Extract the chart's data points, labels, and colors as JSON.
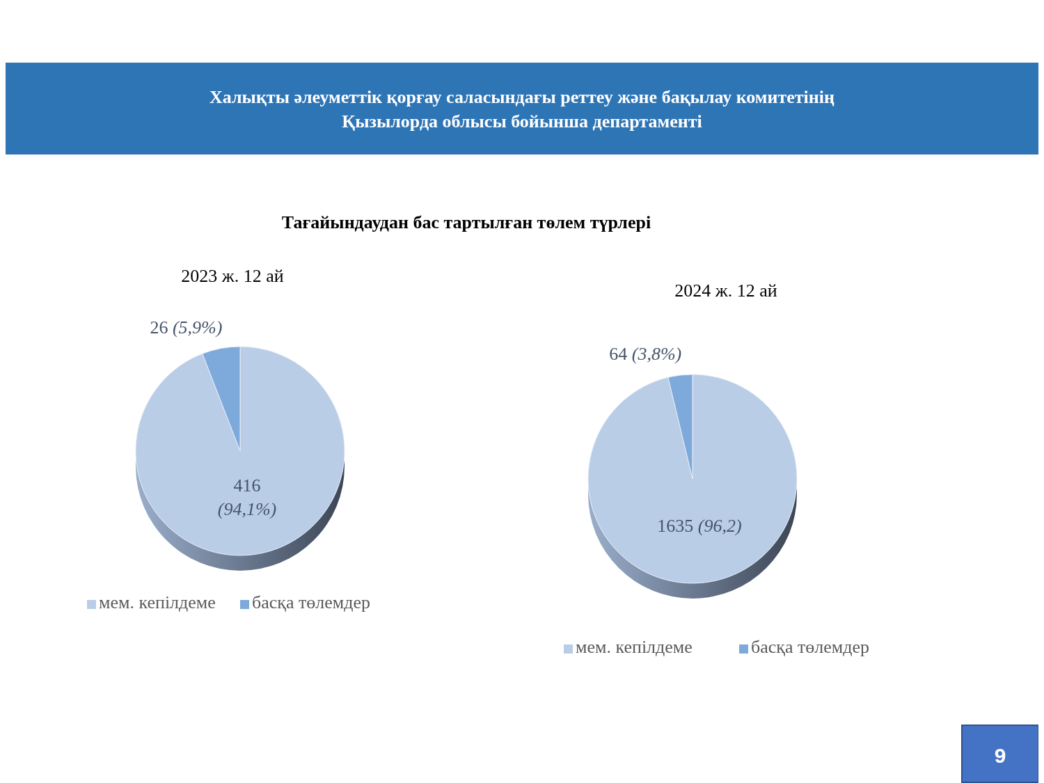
{
  "chart_data": [
    {
      "type": "other",
      "title": "Халықты әлеуметтік қорғау саласындағы реттеу және бақылау комитетінің\nҚызылорда облысы бойынша департаменті",
      "subtitle": "Тағайындаудан бас тартылған төлем түрлері",
      "annotations": [
        "9"
      ]
    },
    {
      "type": "pie",
      "title": "2023 ж. 12 ай",
      "categories": [
        "мем. кепілдеме",
        "басқа төлемдер"
      ],
      "values": [
        416,
        26
      ],
      "colors": [
        "#b9cde6",
        "#7eaadb"
      ],
      "value_labels": [
        "416 (94,1%)",
        "26 (5,9%)"
      ],
      "legend": "bottom"
    },
    {
      "type": "pie",
      "title": "2024 ж. 12 ай",
      "categories": [
        "мем. кепілдеме",
        "басқа төлемдер"
      ],
      "values": [
        1635,
        64
      ],
      "colors": [
        "#b9cde6",
        "#7eaadb"
      ],
      "value_labels": [
        "1635 (96,2)",
        "64 (3,8%)"
      ],
      "legend": "bottom"
    }
  ]
}
